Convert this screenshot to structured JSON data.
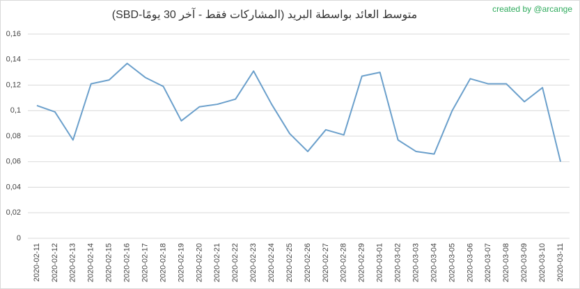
{
  "chart_data": {
    "type": "line",
    "title": "متوسط العائد بواسطة البريد (المشاركات فقط - آخر 30 يومًا-SBD)",
    "annotation": "created by @arcange",
    "categories": [
      "2020-02-11",
      "2020-02-12",
      "2020-02-13",
      "2020-02-14",
      "2020-02-15",
      "2020-02-16",
      "2020-02-17",
      "2020-02-18",
      "2020-02-19",
      "2020-02-20",
      "2020-02-21",
      "2020-02-22",
      "2020-02-23",
      "2020-02-24",
      "2020-02-25",
      "2020-02-26",
      "2020-02-27",
      "2020-02-28",
      "2020-02-29",
      "2020-03-01",
      "2020-03-02",
      "2020-03-03",
      "2020-03-04",
      "2020-03-05",
      "2020-03-06",
      "2020-03-07",
      "2020-03-08",
      "2020-03-09",
      "2020-03-10",
      "2020-03-11"
    ],
    "values": [
      0.104,
      0.099,
      0.077,
      0.121,
      0.124,
      0.137,
      0.126,
      0.119,
      0.092,
      0.103,
      0.105,
      0.109,
      0.131,
      0.105,
      0.082,
      0.068,
      0.085,
      0.081,
      0.127,
      0.13,
      0.077,
      0.068,
      0.066,
      0.1,
      0.125,
      0.121,
      0.121,
      0.107,
      0.118,
      0.06
    ],
    "color": "#6a9fcb",
    "ylim": [
      0,
      0.16
    ],
    "yticks": [
      0,
      {
        "value": 0.02,
        "label": "0,02"
      },
      {
        "value": 0.04,
        "label": "0,04"
      },
      {
        "value": 0.06,
        "label": "0,06"
      },
      {
        "value": 0.08,
        "label": "0,08"
      },
      {
        "value": 0.1,
        "label": "0,1"
      },
      {
        "value": 0.12,
        "label": "0,12"
      },
      {
        "value": 0.14,
        "label": "0,14"
      },
      {
        "value": 0.16,
        "label": "0,16"
      }
    ],
    "grid": true
  }
}
